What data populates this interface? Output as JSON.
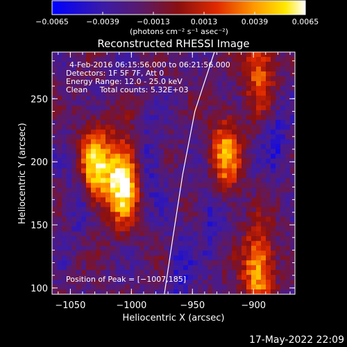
{
  "colorbar": {
    "ticks": [
      "−0.0065",
      "−0.0039",
      "−0.0013",
      "0.0013",
      "0.0039",
      "0.0065"
    ],
    "tick_values": [
      -0.0065,
      -0.0039,
      -0.0013,
      0.0013,
      0.0039,
      0.0065
    ],
    "range": [
      -0.0065,
      0.0065
    ],
    "label": "(photons cm⁻² s⁻¹ asec⁻²)"
  },
  "chart_data": {
    "type": "heatmap",
    "title": "Reconstructed RHESSI Image",
    "xlabel": "Heliocentric X (arcsec)",
    "ylabel": "Heliocentric Y (arcsec)",
    "xlim": [
      -1065,
      -866
    ],
    "ylim": [
      95,
      287
    ],
    "xticks": [
      -1050,
      -1000,
      -950,
      -900
    ],
    "xtick_labels": [
      "−1050",
      "−1000",
      "−950",
      "−900"
    ],
    "yticks": [
      100,
      150,
      200,
      250
    ],
    "ytick_labels": [
      "100",
      "150",
      "200",
      "250"
    ],
    "colormap": "blue-purple-red-yellow-white",
    "sources": [
      {
        "x": -1007,
        "y": 185,
        "peak": 1.0
      },
      {
        "x": -1030,
        "y": 196,
        "peak": 0.8
      },
      {
        "x": -923,
        "y": 205,
        "peak": 0.65
      },
      {
        "x": -896,
        "y": 115,
        "peak": 0.75
      },
      {
        "x": -895,
        "y": 275,
        "peak": 0.55
      }
    ],
    "limb": [
      [
        -932,
        287
      ],
      [
        -948,
        240
      ],
      [
        -958,
        190
      ],
      [
        -966,
        140
      ],
      [
        -973,
        95
      ]
    ],
    "annotations": {
      "time_range": "4-Feb-2016 06:15:56.000 to 06:21:56.000",
      "detectors": "Detectors: 1F 5F 7F, Att 0",
      "energy": "Energy Range: 12.0 - 25.0 keV",
      "clean": "Clean     Total counts: 5.32E+03",
      "peak": "Position of Peak = [−1007,185]"
    }
  },
  "timestamp": "17-May-2022 22:09"
}
